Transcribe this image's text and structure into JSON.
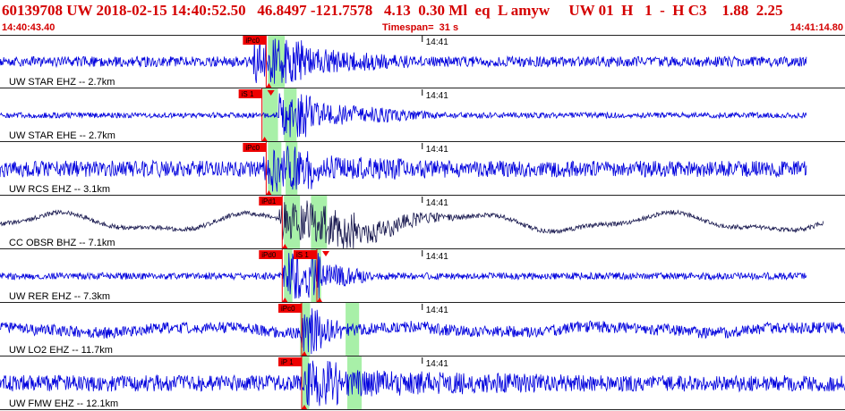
{
  "header": {
    "title": "60139708 UW 2018-02-15 14:40:52.50   46.8497 -121.7578   4.13  0.30 Ml  eq  L amyw     UW 01  H   1  -  H C3    1.88  2.25",
    "start_time": "14:40:43.40",
    "timespan_label": "Timespan=  31 s",
    "end_time": "14:41:14.80"
  },
  "colors": {
    "header_text": "#d40000",
    "trace_blue": "#0000dd",
    "trace_dark": "#1a1a50",
    "pick_red": "#ee0000",
    "window_green": "#a8f0a8",
    "divider": "#222222"
  },
  "time_tick_label": "14:41",
  "channels": [
    {
      "label": "UW STAR EHZ -- 2.7km",
      "trace_color": "blue",
      "noise": 0.22,
      "peak": 1.0,
      "burst_start": 0.3,
      "burst_end": 0.36,
      "coda_end": 0.5,
      "trace_start": 0.0,
      "trace_end": 0.955,
      "low_freq_amp": 0.0,
      "picks": [
        {
          "label": "iPc0",
          "time": 0.315,
          "type": "P"
        }
      ],
      "windows": [
        {
          "start": 0.317,
          "end": 0.337
        }
      ]
    },
    {
      "label": "UW STAR EHE -- 2.7km",
      "trace_color": "blue",
      "noise": 0.12,
      "peak": 0.95,
      "burst_start": 0.33,
      "burst_end": 0.37,
      "coda_end": 0.52,
      "trace_start": 0.0,
      "trace_end": 0.955,
      "low_freq_amp": 0.0,
      "picks": [
        {
          "label": "iS 1",
          "time": 0.31,
          "type": "S"
        }
      ],
      "windows": [
        {
          "start": 0.311,
          "end": 0.329
        },
        {
          "start": 0.336,
          "end": 0.351
        }
      ]
    },
    {
      "label": "UW RCS EHZ -- 3.1km",
      "trace_color": "blue",
      "noise": 0.35,
      "peak": 1.0,
      "burst_start": 0.31,
      "burst_end": 0.37,
      "coda_end": 0.55,
      "trace_start": 0.0,
      "trace_end": 0.955,
      "low_freq_amp": 0.0,
      "picks": [
        {
          "label": "iPc0",
          "time": 0.315,
          "type": "P"
        }
      ],
      "windows": [
        {
          "start": 0.317,
          "end": 0.333
        },
        {
          "start": 0.338,
          "end": 0.352
        }
      ]
    },
    {
      "label": "CC OBSR BHZ -- 7.1km",
      "trace_color": "dark",
      "noise": 0.1,
      "peak": 0.9,
      "burst_start": 0.33,
      "burst_end": 0.42,
      "coda_end": 0.55,
      "trace_start": 0.0,
      "trace_end": 0.975,
      "low_freq_amp": 0.55,
      "picks": [
        {
          "label": "iPd1",
          "time": 0.334,
          "type": "P"
        }
      ],
      "windows": [
        {
          "start": 0.336,
          "end": 0.355
        },
        {
          "start": 0.368,
          "end": 0.387
        }
      ]
    },
    {
      "label": "UW RER EHZ -- 7.3km",
      "trace_color": "blue",
      "noise": 0.15,
      "peak": 1.0,
      "burst_start": 0.335,
      "burst_end": 0.38,
      "coda_end": 0.45,
      "trace_start": 0.0,
      "trace_end": 0.955,
      "low_freq_amp": 0.0,
      "picks": [
        {
          "label": "iPd0",
          "time": 0.334,
          "type": "P"
        },
        {
          "label": "iS 1",
          "time": 0.375,
          "type": "S"
        }
      ],
      "windows": [
        {
          "start": 0.336,
          "end": 0.346
        },
        {
          "start": 0.368,
          "end": 0.38
        }
      ]
    },
    {
      "label": "UW LO2 EHZ -- 11.7km",
      "trace_color": "blue",
      "noise": 0.25,
      "peak": 1.0,
      "burst_start": 0.355,
      "burst_end": 0.38,
      "coda_end": 0.42,
      "trace_start": 0.0,
      "trace_end": 1.0,
      "low_freq_amp": 0.18,
      "picks": [
        {
          "label": "iPc0",
          "time": 0.357,
          "type": "P"
        }
      ],
      "windows": [
        {
          "start": 0.355,
          "end": 0.367
        },
        {
          "start": 0.409,
          "end": 0.425
        }
      ]
    },
    {
      "label": "UW FMW EHZ -- 12.1km",
      "trace_color": "blue",
      "noise": 0.35,
      "peak": 1.0,
      "burst_start": 0.36,
      "burst_end": 0.4,
      "coda_end": 0.7,
      "trace_start": 0.0,
      "trace_end": 1.0,
      "low_freq_amp": 0.0,
      "picks": [
        {
          "label": "iP 1",
          "time": 0.357,
          "type": "P"
        }
      ],
      "windows": [
        {
          "start": 0.357,
          "end": 0.366
        },
        {
          "start": 0.411,
          "end": 0.428
        }
      ]
    }
  ],
  "tick_time": 0.5315
}
